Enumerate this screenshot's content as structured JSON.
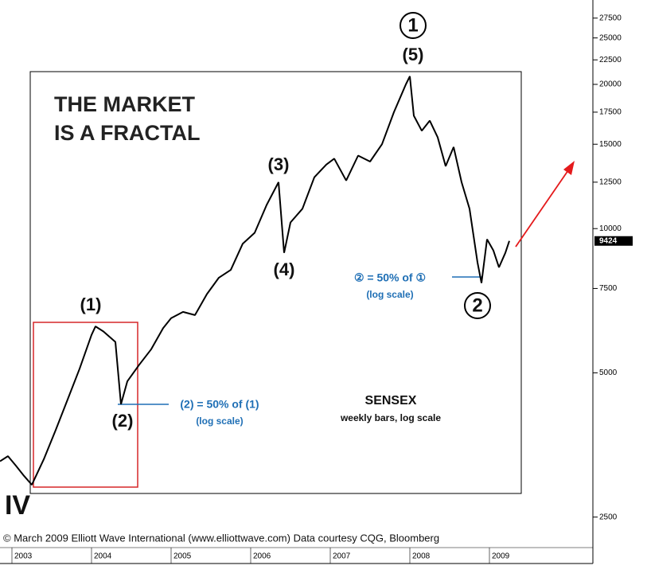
{
  "chart_data": {
    "type": "line",
    "title": [
      "THE MARKET",
      "IS A FRACTAL"
    ],
    "x": [
      2002.85,
      2002.95,
      2003.05,
      2003.15,
      2003.25,
      2003.4,
      2003.55,
      2003.7,
      2003.85,
      2004.0,
      2004.05,
      2004.15,
      2004.3,
      2004.37,
      2004.45,
      2004.6,
      2004.75,
      2004.9,
      2005.0,
      2005.15,
      2005.3,
      2005.45,
      2005.6,
      2005.75,
      2005.9,
      2006.05,
      2006.2,
      2006.35,
      2006.42,
      2006.5,
      2006.65,
      2006.8,
      2006.95,
      2007.05,
      2007.2,
      2007.35,
      2007.5,
      2007.65,
      2007.8,
      2007.95,
      2008.0,
      2008.05,
      2008.15,
      2008.25,
      2008.35,
      2008.45,
      2008.55,
      2008.65,
      2008.75,
      2008.85,
      2008.9,
      2008.97,
      2009.05,
      2009.12,
      2009.2,
      2009.25
    ],
    "series": [
      {
        "name": "SENSEX",
        "color": "#000000",
        "values": [
          3270,
          3350,
          3200,
          3050,
          2920,
          3300,
          3800,
          4400,
          5100,
          6000,
          6250,
          6100,
          5800,
          4300,
          4800,
          5200,
          5600,
          6200,
          6500,
          6700,
          6600,
          7300,
          7900,
          8200,
          9300,
          9800,
          11200,
          12500,
          8900,
          10300,
          11000,
          12800,
          13600,
          14000,
          12600,
          14200,
          13800,
          15000,
          17500,
          20000,
          20800,
          17200,
          16000,
          16800,
          15500,
          13500,
          14800,
          12500,
          11000,
          8500,
          7700,
          9500,
          9000,
          8300,
          8900,
          9424
        ]
      }
    ],
    "last_value": 9424,
    "xlim": [
      2002.85,
      2010.3
    ],
    "xticks": [
      2003,
      2004,
      2005,
      2006,
      2007,
      2008,
      2009
    ],
    "ylim": [
      2000,
      30000
    ],
    "yticks": [
      2500,
      5000,
      7500,
      10000,
      12500,
      15000,
      17500,
      20000,
      22500,
      25000,
      27500
    ],
    "log_scale": true,
    "annotations": [
      "(1)",
      "(2)",
      "(3)",
      "(4)",
      "(5)",
      "1",
      "2",
      "IV"
    ],
    "note_left": [
      "(2) = 50% of (1)",
      "(log scale)"
    ],
    "note_right": [
      "② = 50% of ①",
      "(log scale)"
    ],
    "label": "SENSEX",
    "sublabel": "weekly bars, log scale",
    "credit": "© March 2009 Elliott Wave International (www.elliottwave.com) Data courtesy CQG, Bloomberg"
  }
}
